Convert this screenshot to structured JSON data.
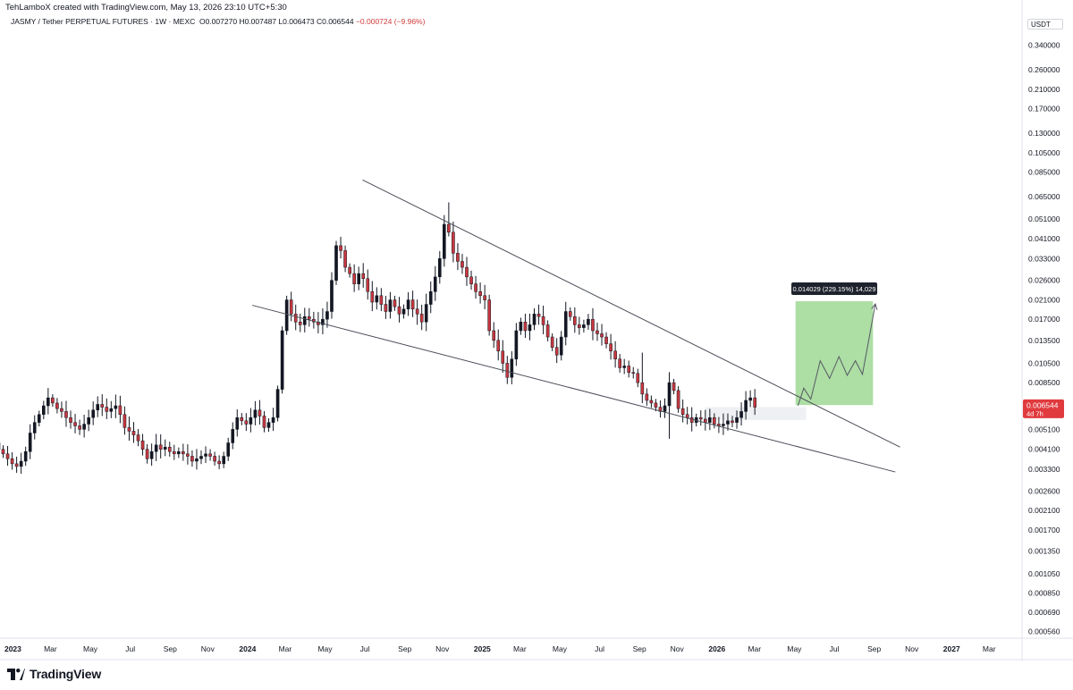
{
  "credit": "TehLamboX created with TradingView.com, May 13, 2026 23:10 UTC+5:30",
  "legend": {
    "symbol": "JASMY / Tether PERPETUAL FUTURES · 1W · MEXC",
    "open": "O0.007270",
    "high": "H0.007487",
    "low": "L0.006473",
    "close": "C0.006544",
    "change": "−0.000724 (−9.96%)"
  },
  "currency": "USDT",
  "brand": "TradingView",
  "price_label": {
    "value": "0.006544",
    "countdown": "4d 7h"
  },
  "measure_label": "0.014029 (229.15%) 14,029",
  "colors": {
    "up": "#131722",
    "down": "#c8373f",
    "target_zone": "#9fd894",
    "price_tag": "#e03a3e"
  },
  "chart_data": {
    "type": "candlestick",
    "scale": "log",
    "y_ticks": [
      "0.340000",
      "0.260000",
      "0.210000",
      "0.170000",
      "0.130000",
      "0.105000",
      "0.085000",
      "0.065000",
      "0.051000",
      "0.041000",
      "0.033000",
      "0.026000",
      "0.021000",
      "0.017000",
      "0.013500",
      "0.010500",
      "0.008500",
      "0.006544",
      "0.005100",
      "0.004100",
      "0.003300",
      "0.002600",
      "0.002100",
      "0.001700",
      "0.001350",
      "0.001050",
      "0.000850",
      "0.000690",
      "0.000560"
    ],
    "y_tick_values": [
      0.34,
      0.26,
      0.21,
      0.17,
      0.13,
      0.105,
      0.085,
      0.065,
      0.051,
      0.041,
      0.033,
      0.026,
      0.021,
      0.017,
      0.0135,
      0.0105,
      0.0085,
      0.006544,
      0.0051,
      0.0041,
      0.0033,
      0.0026,
      0.0021,
      0.0017,
      0.00135,
      0.00105,
      0.00085,
      0.00069,
      0.00056
    ],
    "x_ticks": [
      {
        "label": "2023",
        "t": 2023.0,
        "bold": true
      },
      {
        "label": "Mar",
        "t": 2023.16
      },
      {
        "label": "May",
        "t": 2023.33
      },
      {
        "label": "Jul",
        "t": 2023.5
      },
      {
        "label": "Sep",
        "t": 2023.67
      },
      {
        "label": "Nov",
        "t": 2023.83
      },
      {
        "label": "2024",
        "t": 2024.0,
        "bold": true
      },
      {
        "label": "Mar",
        "t": 2024.16
      },
      {
        "label": "May",
        "t": 2024.33
      },
      {
        "label": "Jul",
        "t": 2024.5
      },
      {
        "label": "Sep",
        "t": 2024.67
      },
      {
        "label": "Nov",
        "t": 2024.83
      },
      {
        "label": "2025",
        "t": 2025.0,
        "bold": true
      },
      {
        "label": "Mar",
        "t": 2025.16
      },
      {
        "label": "May",
        "t": 2025.33
      },
      {
        "label": "Jul",
        "t": 2025.5
      },
      {
        "label": "Sep",
        "t": 2025.67
      },
      {
        "label": "Nov",
        "t": 2025.83
      },
      {
        "label": "2026",
        "t": 2026.0,
        "bold": true
      },
      {
        "label": "Mar",
        "t": 2026.16
      },
      {
        "label": "May",
        "t": 2026.33
      },
      {
        "label": "Jul",
        "t": 2026.5
      },
      {
        "label": "Sep",
        "t": 2026.67
      },
      {
        "label": "Nov",
        "t": 2026.83
      },
      {
        "label": "2027",
        "t": 2027.0,
        "bold": true
      },
      {
        "label": "Mar",
        "t": 2027.16
      }
    ],
    "x_range": [
      2022.945,
      2027.3
    ],
    "y_range": [
      0.00052,
      0.4
    ],
    "candle_start": 2022.92,
    "candle_step": 0.01918,
    "closes": [
      0.0044,
      0.0041,
      0.0039,
      0.0037,
      0.0035,
      0.0034,
      0.0036,
      0.004,
      0.0049,
      0.0055,
      0.006,
      0.0066,
      0.0072,
      0.0068,
      0.0064,
      0.0062,
      0.0058,
      0.0055,
      0.0053,
      0.0051,
      0.0054,
      0.0058,
      0.0063,
      0.0067,
      0.0065,
      0.0062,
      0.0064,
      0.0066,
      0.006,
      0.0052,
      0.005,
      0.0048,
      0.0045,
      0.0041,
      0.0037,
      0.004,
      0.0043,
      0.0041,
      0.0042,
      0.004,
      0.0039,
      0.004,
      0.0039,
      0.0038,
      0.0036,
      0.0037,
      0.0038,
      0.0039,
      0.0038,
      0.0036,
      0.0035,
      0.0038,
      0.0044,
      0.0051,
      0.0058,
      0.0056,
      0.0054,
      0.0058,
      0.0063,
      0.0059,
      0.0052,
      0.0055,
      0.0058,
      0.0079,
      0.015,
      0.021,
      0.018,
      0.0165,
      0.016,
      0.0175,
      0.017,
      0.0165,
      0.016,
      0.017,
      0.0185,
      0.026,
      0.038,
      0.036,
      0.03,
      0.028,
      0.025,
      0.028,
      0.0265,
      0.023,
      0.0205,
      0.022,
      0.02,
      0.0185,
      0.021,
      0.0195,
      0.018,
      0.019,
      0.021,
      0.019,
      0.018,
      0.0165,
      0.02,
      0.023,
      0.027,
      0.033,
      0.048,
      0.044,
      0.035,
      0.032,
      0.03,
      0.027,
      0.025,
      0.023,
      0.022,
      0.021,
      0.015,
      0.0135,
      0.012,
      0.0105,
      0.009,
      0.011,
      0.015,
      0.0165,
      0.015,
      0.016,
      0.018,
      0.0175,
      0.016,
      0.014,
      0.0125,
      0.0115,
      0.014,
      0.0185,
      0.0175,
      0.016,
      0.0155,
      0.016,
      0.017,
      0.015,
      0.0145,
      0.014,
      0.013,
      0.012,
      0.011,
      0.01,
      0.0102,
      0.0095,
      0.0094,
      0.0085,
      0.0075,
      0.007,
      0.0068,
      0.0065,
      0.0062,
      0.0066,
      0.0085,
      0.0078,
      0.0064,
      0.006,
      0.0058,
      0.0055,
      0.0058,
      0.0057,
      0.0055,
      0.0058,
      0.0054,
      0.0053,
      0.0054,
      0.0056,
      0.0055,
      0.0058,
      0.0062,
      0.007,
      0.0072,
      0.0065
    ],
    "special_lows": {
      "150": 0.0046,
      "161": 0.0049,
      "94": 0.016
    },
    "special_highs": {
      "101": 0.061,
      "144": 0.0118
    },
    "trendlines": [
      {
        "t1": 2024.49,
        "p1": 0.078,
        "t2": 2026.78,
        "p2": 0.0042
      },
      {
        "t1": 2024.02,
        "p1": 0.0198,
        "t2": 2026.76,
        "p2": 0.0032
      }
    ],
    "target_zone": {
      "t1": 2026.335,
      "t2": 2026.665,
      "p_low": 0.00665,
      "p_high": 0.0207
    },
    "shadow_zone": {
      "t1": 2025.95,
      "t2": 2026.38,
      "p_low": 0.00565,
      "p_high": 0.0065
    },
    "projection_path": [
      [
        2026.345,
        0.0066
      ],
      [
        2026.37,
        0.008
      ],
      [
        2026.4,
        0.0071
      ],
      [
        2026.44,
        0.0108
      ],
      [
        2026.48,
        0.0089
      ],
      [
        2026.52,
        0.0113
      ],
      [
        2026.555,
        0.0092
      ],
      [
        2026.59,
        0.0108
      ],
      [
        2026.62,
        0.0093
      ],
      [
        2026.675,
        0.0201
      ]
    ],
    "last_price": 0.006544
  }
}
